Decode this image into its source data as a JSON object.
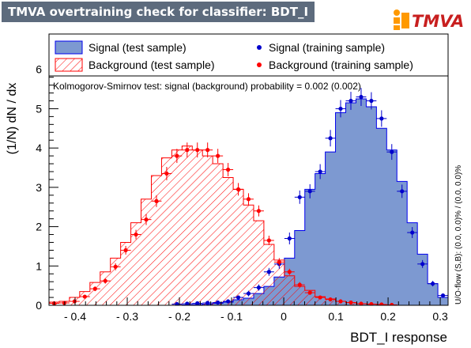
{
  "window": {
    "title": "TMVA overtraining check for classifier: BDT_I",
    "logo_text": "TMVA"
  },
  "chart_data": {
    "type": "histogram",
    "xlabel": "BDT_I response",
    "ylabel": "(1/N) dN / dx",
    "xlim": [
      -0.45,
      0.315
    ],
    "ylim": [
      0,
      6.9
    ],
    "x_ticks": [
      -0.4,
      -0.3,
      -0.2,
      -0.1,
      0,
      0.1,
      0.2,
      0.3
    ],
    "x_tick_labels": [
      "- 0.4",
      "- 0.3",
      "- 0.2",
      "- 0.1",
      "0",
      "0.1",
      "0.2",
      "0.3"
    ],
    "y_ticks": [
      0,
      1,
      2,
      3,
      4,
      5,
      6
    ],
    "bin_edges": [
      -0.45,
      -0.4304,
      -0.4108,
      -0.3912,
      -0.3715,
      -0.3519,
      -0.3323,
      -0.3127,
      -0.2931,
      -0.2735,
      -0.2538,
      -0.2342,
      -0.2146,
      -0.195,
      -0.1754,
      -0.1558,
      -0.1362,
      -0.1165,
      -0.0969,
      -0.0773,
      -0.0577,
      -0.0381,
      -0.0185,
      0.0012,
      0.0208,
      0.0404,
      0.06,
      0.0796,
      0.0992,
      0.1188,
      0.1385,
      0.1581,
      0.1777,
      0.1973,
      0.2169,
      0.2365,
      0.2562,
      0.2758,
      0.2954,
      0.315
    ],
    "annotation": "Kolmogorov-Smirnov test: signal (background) probability = 0.002 (0.002)",
    "side_text": "U/O-flow (S,B): (0.0, 0.0)% / (0.0, 0.0)%",
    "legend": [
      {
        "label": "Signal (test sample)",
        "style": "filled-box",
        "color": "#7d99d1"
      },
      {
        "label": "Signal (training sample)",
        "style": "marker",
        "color": "#0000cc"
      },
      {
        "label": "Background (test sample)",
        "style": "hatched-box",
        "color": "#ff0000"
      },
      {
        "label": "Background (training sample)",
        "style": "marker",
        "color": "#ff0000"
      }
    ],
    "series": [
      {
        "name": "Signal (test sample)",
        "kind": "hist-filled",
        "values": [
          0,
          0,
          0,
          0,
          0,
          0,
          0,
          0,
          0,
          0,
          0,
          0,
          0,
          0.01,
          0.02,
          0.03,
          0.05,
          0.08,
          0.14,
          0.18,
          0.3,
          0.48,
          0.72,
          1.2,
          1.9,
          2.95,
          3.35,
          3.9,
          4.9,
          5.15,
          5.25,
          5.05,
          4.5,
          3.95,
          3.15,
          2.1,
          1.3,
          0.55,
          0.2
        ]
      },
      {
        "name": "Signal (training sample)",
        "kind": "points",
        "values": [
          0,
          0,
          0,
          0,
          0,
          0,
          0,
          0,
          0,
          0,
          0,
          0,
          0.03,
          0.04,
          0.05,
          0.06,
          0.07,
          0.1,
          0.2,
          0.3,
          0.45,
          0.85,
          1.05,
          1.7,
          2.75,
          2.9,
          3.4,
          4.25,
          5,
          5.2,
          5.3,
          5.2,
          4.75,
          3.9,
          2.9,
          1.85,
          1.05,
          0.55,
          0.25
        ],
        "errors": [
          0,
          0,
          0,
          0,
          0,
          0,
          0,
          0,
          0,
          0,
          0,
          0,
          0.02,
          0.02,
          0.02,
          0.03,
          0.03,
          0.04,
          0.05,
          0.07,
          0.08,
          0.1,
          0.12,
          0.15,
          0.17,
          0.18,
          0.19,
          0.21,
          0.22,
          0.23,
          0.23,
          0.22,
          0.21,
          0.2,
          0.17,
          0.14,
          0.1,
          0.07,
          0.05
        ]
      },
      {
        "name": "Background (test sample)",
        "kind": "hist-hatched",
        "values": [
          0.08,
          0.1,
          0.2,
          0.35,
          0.58,
          0.85,
          1.2,
          1.6,
          2.1,
          2.7,
          3.3,
          3.75,
          3.95,
          4.05,
          3.95,
          3.8,
          3.6,
          3.25,
          2.95,
          2.55,
          2.15,
          1.55,
          1.15,
          0.75,
          0.48,
          0.38,
          0.22,
          0.16,
          0.1,
          0.07,
          0.04,
          0.03,
          0.02,
          0.01,
          0,
          0,
          0,
          0,
          0
        ]
      },
      {
        "name": "Background (training sample)",
        "kind": "points",
        "values": [
          0.05,
          0.06,
          0.1,
          0.22,
          0.42,
          0.62,
          0.98,
          1.4,
          1.8,
          2.18,
          2.65,
          3.35,
          3.8,
          3.95,
          3.95,
          3.95,
          3.8,
          3.45,
          2.95,
          2.7,
          2.4,
          1.65,
          1.1,
          0.85,
          0.52,
          0.32,
          0.2,
          0.15,
          0.1,
          0.07,
          0.04,
          0.03,
          0.02,
          0.01,
          0,
          0,
          0,
          0,
          0
        ],
        "errors": [
          0.02,
          0.02,
          0.03,
          0.04,
          0.06,
          0.07,
          0.09,
          0.11,
          0.12,
          0.14,
          0.15,
          0.17,
          0.18,
          0.19,
          0.19,
          0.19,
          0.18,
          0.17,
          0.16,
          0.15,
          0.14,
          0.12,
          0.1,
          0.08,
          0.07,
          0.05,
          0.04,
          0.04,
          0.03,
          0.03,
          0.02,
          0.02,
          0.01,
          0.01,
          0,
          0,
          0,
          0,
          0
        ]
      }
    ]
  }
}
